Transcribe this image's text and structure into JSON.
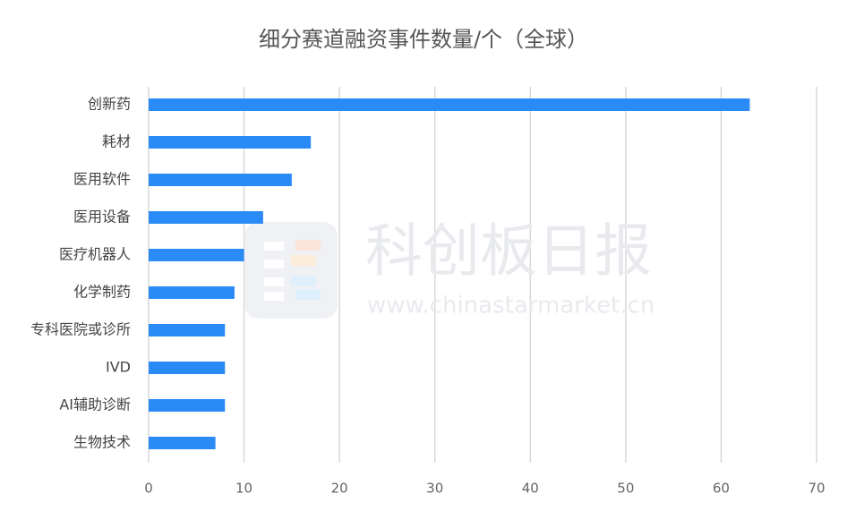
{
  "chart_data": {
    "type": "barh",
    "title": "细分赛道融资事件数量/个（全球）",
    "categories": [
      "创新药",
      "耗材",
      "医用软件",
      "医用设备",
      "医疗机器人",
      "化学制药",
      "专科医院或诊所",
      "IVD",
      "AI辅助诊断",
      "生物技术"
    ],
    "values": [
      63,
      17,
      15,
      12,
      10,
      9,
      8,
      8,
      8,
      7
    ],
    "color": "#2a8af6",
    "xlim": [
      0,
      70
    ],
    "xticks": [
      0,
      10,
      20,
      30,
      40,
      50,
      60,
      70
    ],
    "grid": true,
    "watermark": {
      "title": "科创板日报",
      "url": "www.chinastarmarket.cn"
    }
  }
}
